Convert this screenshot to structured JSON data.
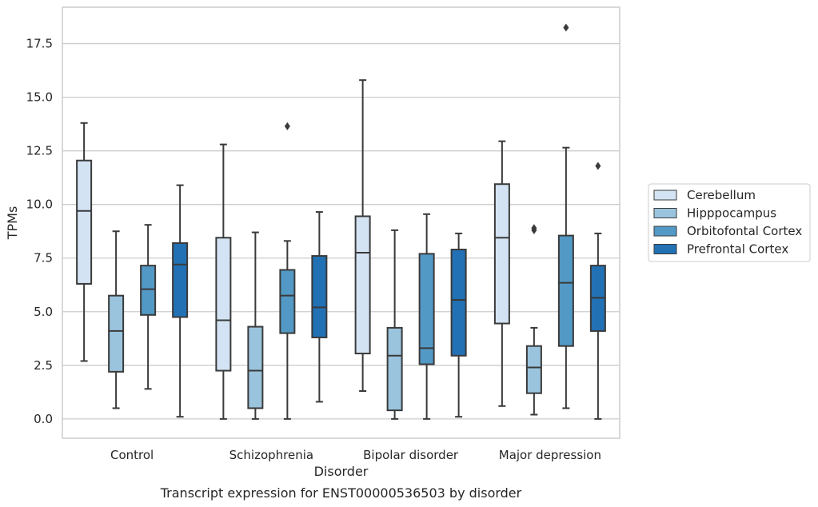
{
  "chart_data": {
    "type": "box",
    "title": "",
    "caption": "Transcript expression for ENST00000536503 by disorder",
    "xlabel": "Disorder",
    "ylabel": "TPMs",
    "ylim": [
      -0.9,
      19.2
    ],
    "yticks": [
      0.0,
      2.5,
      5.0,
      7.5,
      10.0,
      12.5,
      15.0,
      17.5
    ],
    "ytick_labels": [
      "0.0",
      "2.5",
      "5.0",
      "7.5",
      "10.0",
      "12.5",
      "15.0",
      "17.5"
    ],
    "grid": "horizontal",
    "legend_position": "right",
    "categories": [
      "Control",
      "Schizophrenia",
      "Bipolar disorder",
      "Major depression"
    ],
    "series": [
      {
        "name": "Cerebellum",
        "color": "#d3e3f3",
        "boxes": [
          {
            "whislo": 2.7,
            "q1": 6.3,
            "med": 9.7,
            "q3": 12.05,
            "whishi": 13.8,
            "fliers": []
          },
          {
            "whislo": 0.0,
            "q1": 2.25,
            "med": 4.6,
            "q3": 8.45,
            "whishi": 12.8,
            "fliers": []
          },
          {
            "whislo": 1.3,
            "q1": 3.05,
            "med": 7.75,
            "q3": 9.45,
            "whishi": 15.8,
            "fliers": []
          },
          {
            "whislo": 0.6,
            "q1": 4.45,
            "med": 8.45,
            "q3": 10.95,
            "whishi": 12.95,
            "fliers": []
          }
        ]
      },
      {
        "name": "Hipppocampus",
        "color": "#9ac4dd",
        "boxes": [
          {
            "whislo": 0.5,
            "q1": 2.2,
            "med": 4.1,
            "q3": 5.75,
            "whishi": 8.75,
            "fliers": []
          },
          {
            "whislo": 0.0,
            "q1": 0.5,
            "med": 2.25,
            "q3": 4.3,
            "whishi": 8.7,
            "fliers": []
          },
          {
            "whislo": 0.0,
            "q1": 0.4,
            "med": 2.95,
            "q3": 4.25,
            "whishi": 8.8,
            "fliers": []
          },
          {
            "whislo": 0.2,
            "q1": 1.2,
            "med": 2.4,
            "q3": 3.4,
            "whishi": 4.25,
            "fliers": [
              8.8,
              8.9
            ]
          }
        ]
      },
      {
        "name": "Orbitofontal Cortex",
        "color": "#5399c6",
        "boxes": [
          {
            "whislo": 1.4,
            "q1": 4.85,
            "med": 6.05,
            "q3": 7.15,
            "whishi": 9.05,
            "fliers": []
          },
          {
            "whislo": 0.0,
            "q1": 4.0,
            "med": 5.75,
            "q3": 6.95,
            "whishi": 8.3,
            "fliers": [
              13.65
            ]
          },
          {
            "whislo": 0.0,
            "q1": 2.55,
            "med": 3.3,
            "q3": 7.7,
            "whishi": 9.55,
            "fliers": []
          },
          {
            "whislo": 0.5,
            "q1": 3.4,
            "med": 6.35,
            "q3": 8.55,
            "whishi": 12.65,
            "fliers": [
              18.25
            ]
          }
        ]
      },
      {
        "name": "Prefrontal Cortex",
        "color": "#2271b4",
        "boxes": [
          {
            "whislo": 0.1,
            "q1": 4.75,
            "med": 7.2,
            "q3": 8.2,
            "whishi": 10.9,
            "fliers": []
          },
          {
            "whislo": 0.8,
            "q1": 3.8,
            "med": 5.2,
            "q3": 7.6,
            "whishi": 9.65,
            "fliers": []
          },
          {
            "whislo": 0.1,
            "q1": 2.95,
            "med": 5.55,
            "q3": 7.9,
            "whishi": 8.65,
            "fliers": []
          },
          {
            "whislo": 0.0,
            "q1": 4.1,
            "med": 5.65,
            "q3": 7.15,
            "whishi": 8.65,
            "fliers": [
              11.8
            ]
          }
        ]
      }
    ]
  }
}
